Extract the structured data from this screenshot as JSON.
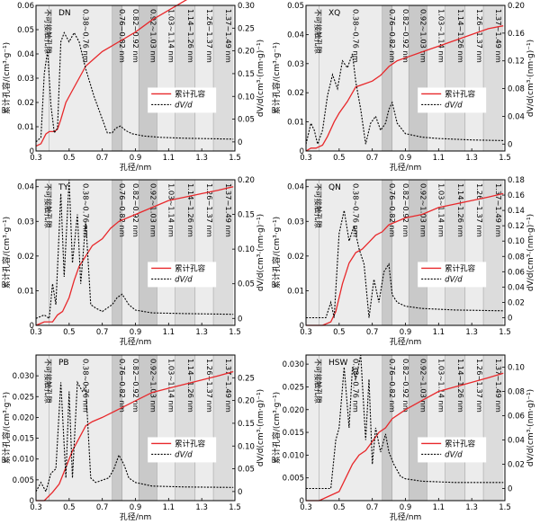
{
  "chart_data": [
    {
      "type": "line",
      "code": "DN",
      "xlabel": "孔径/nm",
      "ylabel": "累计孔容/(cm³·g⁻¹)",
      "y2label": "dV/d(cm³·(nm·g)⁻¹)",
      "xlim": [
        0.3,
        1.5
      ],
      "xticks": [
        "0.3",
        "0.5",
        "0.7",
        "0.9",
        "1.1",
        "1.3",
        "1.5"
      ],
      "ylim": [
        0,
        0.06
      ],
      "yticks": [
        "0",
        "0.01",
        "0.02",
        "0.03",
        "0.04",
        "0.05",
        "0.06"
      ],
      "y2lim": [
        -0.02,
        0.3
      ],
      "y2ticks": [
        "0",
        "0.05",
        "0.10",
        "0.15",
        "0.20",
        "0.25",
        "0.30"
      ],
      "zones": [
        "不可接触孔隙",
        "0.38~0.76 nm",
        "0.76~0.82 nm",
        "0.82~0.92 nm",
        "0.92~1.03 nm",
        "1.03~1.14 nm",
        "1.14~1.26 nm",
        "1.26~1.37 nm",
        "1.37~1.49 nm"
      ],
      "legend": [
        "累计孔容",
        "dV/d"
      ],
      "series": [
        {
          "name": "累计孔容",
          "x": [
            0.3,
            0.33,
            0.36,
            0.38,
            0.41,
            0.43,
            0.45,
            0.48,
            0.52,
            0.56,
            0.6,
            0.65,
            0.7,
            0.75,
            0.8,
            0.9,
            1.0,
            1.1,
            1.2,
            1.3,
            1.4,
            1.49
          ],
          "values": [
            0.002,
            0.003,
            0.007,
            0.008,
            0.008,
            0.009,
            0.013,
            0.02,
            0.025,
            0.03,
            0.035,
            0.038,
            0.041,
            0.043,
            0.045,
            0.049,
            0.054,
            0.058,
            0.062,
            0.066,
            0.069,
            0.072
          ]
        },
        {
          "name": "dV/d",
          "x": [
            0.3,
            0.33,
            0.35,
            0.37,
            0.39,
            0.41,
            0.43,
            0.45,
            0.47,
            0.5,
            0.53,
            0.56,
            0.6,
            0.65,
            0.7,
            0.73,
            0.76,
            0.78,
            0.81,
            0.84,
            0.88,
            0.95,
            1.05,
            1.2,
            1.35,
            1.49
          ],
          "values": [
            0.0,
            0.01,
            0.15,
            0.2,
            0.08,
            0.02,
            0.03,
            0.22,
            0.24,
            0.22,
            0.24,
            0.22,
            0.16,
            0.1,
            0.05,
            0.02,
            0.02,
            0.03,
            0.035,
            0.025,
            0.018,
            0.013,
            0.01,
            0.008,
            0.007,
            0.006
          ]
        }
      ]
    },
    {
      "type": "line",
      "code": "XQ",
      "xlabel": "孔径/nm",
      "ylabel": "累计孔容/(cm³·g⁻¹)",
      "y2label": "dV/d(cm³·(nm·g)⁻¹)",
      "xlim": [
        0.3,
        1.5
      ],
      "xticks": [
        "0.3",
        "0.5",
        "0.7",
        "0.9",
        "1.1",
        "1.3",
        "1.5"
      ],
      "ylim": [
        0,
        0.05
      ],
      "yticks": [
        "0",
        "0.01",
        "0.02",
        "0.03",
        "0.04",
        "0.05"
      ],
      "y2lim": [
        -0.01,
        0.2
      ],
      "y2ticks": [
        "0",
        "0.04",
        "0.08",
        "0.12",
        "0.16",
        "0.20"
      ],
      "zones": [
        "不可接触孔隙",
        "0.38~0.76 nm",
        "0.76~0.82 nm",
        "0.82~0.92 nm",
        "0.92~1.03 nm",
        "1.03~1.14 nm",
        "1.14~1.26 nm",
        "1.26~1.37 nm",
        "1.37~1.49 nm"
      ],
      "legend": [
        "累计孔容",
        "dV/d"
      ],
      "series": [
        {
          "name": "累计孔容",
          "x": [
            0.3,
            0.33,
            0.36,
            0.4,
            0.43,
            0.47,
            0.5,
            0.55,
            0.6,
            0.65,
            0.7,
            0.75,
            0.8,
            0.85,
            0.9,
            1.0,
            1.1,
            1.2,
            1.3,
            1.4,
            1.49
          ],
          "values": [
            0.0,
            0.001,
            0.001,
            0.002,
            0.005,
            0.01,
            0.013,
            0.017,
            0.022,
            0.023,
            0.024,
            0.026,
            0.029,
            0.031,
            0.032,
            0.034,
            0.036,
            0.038,
            0.04,
            0.042,
            0.043
          ]
        },
        {
          "name": "dV/d",
          "x": [
            0.3,
            0.33,
            0.35,
            0.37,
            0.4,
            0.43,
            0.46,
            0.49,
            0.52,
            0.55,
            0.58,
            0.6,
            0.63,
            0.66,
            0.69,
            0.72,
            0.75,
            0.78,
            0.8,
            0.82,
            0.85,
            0.9,
            1.0,
            1.1,
            1.2,
            1.3,
            1.49
          ],
          "values": [
            0.0,
            0.03,
            0.02,
            0.0,
            0.02,
            0.07,
            0.1,
            0.08,
            0.12,
            0.11,
            0.13,
            0.09,
            0.05,
            0.0,
            0.03,
            0.04,
            0.02,
            0.03,
            0.05,
            0.06,
            0.03,
            0.015,
            0.01,
            0.008,
            0.007,
            0.006,
            0.005
          ]
        }
      ]
    },
    {
      "type": "line",
      "code": "TY",
      "xlabel": "孔径/nm",
      "ylabel": "累计孔容/(cm³·g⁻¹)",
      "y2label": "dV/d(cm³·(nm·g)⁻¹)",
      "xlim": [
        0.3,
        1.5
      ],
      "xticks": [
        "0.3",
        "0.5",
        "0.7",
        "0.9",
        "1.1",
        "1.3",
        "1.5"
      ],
      "ylim": [
        0,
        0.042
      ],
      "yticks": [
        "0",
        "0.01",
        "0.02",
        "0.03",
        "0.04"
      ],
      "y2lim": [
        -0.01,
        0.2
      ],
      "y2ticks": [
        "0",
        "0.05",
        "0.10",
        "0.15",
        "0.20"
      ],
      "zones": [
        "不可接触孔隙",
        "0.38~0.76 nm",
        "0.76~0.82 nm",
        "0.82~0.92 nm",
        "0.92~1.03 nm",
        "1.03~1.14 nm",
        "1.14~1.26 nm",
        "1.26~1.37 nm",
        "1.37~1.49 nm"
      ],
      "legend": [
        "累计孔容",
        "dV/d"
      ],
      "series": [
        {
          "name": "累计孔容",
          "x": [
            0.3,
            0.35,
            0.4,
            0.43,
            0.46,
            0.5,
            0.53,
            0.56,
            0.6,
            0.64,
            0.7,
            0.75,
            0.8,
            0.9,
            1.0,
            1.1,
            1.2,
            1.3,
            1.4,
            1.49
          ],
          "values": [
            0.0,
            0.001,
            0.001,
            0.003,
            0.004,
            0.008,
            0.013,
            0.017,
            0.02,
            0.023,
            0.025,
            0.028,
            0.03,
            0.032,
            0.034,
            0.036,
            0.037,
            0.038,
            0.039,
            0.04
          ]
        },
        {
          "name": "dV/d",
          "x": [
            0.3,
            0.35,
            0.38,
            0.4,
            0.42,
            0.45,
            0.47,
            0.5,
            0.52,
            0.55,
            0.57,
            0.6,
            0.63,
            0.66,
            0.7,
            0.73,
            0.76,
            0.79,
            0.82,
            0.86,
            0.9,
            1.0,
            1.2,
            1.49
          ],
          "values": [
            0.0,
            0.005,
            0.0,
            0.05,
            0.02,
            0.18,
            0.06,
            0.2,
            0.08,
            0.15,
            0.05,
            0.14,
            0.02,
            0.015,
            0.01,
            0.015,
            0.02,
            0.03,
            0.035,
            0.02,
            0.012,
            0.008,
            0.007,
            0.006
          ]
        }
      ]
    },
    {
      "type": "line",
      "code": "QN",
      "xlabel": "孔径/nm",
      "ylabel": "累计孔容/(cm³·g⁻¹)",
      "y2label": "dV/d(cm³·(nm·g)⁻¹)",
      "xlim": [
        0.3,
        1.5
      ],
      "xticks": [
        "0.3",
        "0.5",
        "0.7",
        "0.9",
        "1.1",
        "1.3",
        "1.5"
      ],
      "ylim": [
        0,
        0.042
      ],
      "yticks": [
        "0",
        "0.01",
        "0.02",
        "0.03",
        "0.04"
      ],
      "y2lim": [
        -0.01,
        0.18
      ],
      "y2ticks": [
        "0",
        "0.02",
        "0.04",
        "0.06",
        "0.08",
        "0.10",
        "0.12",
        "0.14",
        "0.16",
        "0.18"
      ],
      "zones": [
        "不可接触孔隙",
        "0.38~0.76 nm",
        "0.76~0.82 nm",
        "0.82~0.92 nm",
        "0.92~1.03 nm",
        "1.03~1.14 nm",
        "1.14~1.26 nm",
        "1.26~1.37 nm",
        "1.37~1.49 nm"
      ],
      "legend": [
        "累计孔容",
        "dV/d"
      ],
      "series": [
        {
          "name": "累计孔容",
          "x": [
            0.3,
            0.35,
            0.4,
            0.45,
            0.48,
            0.52,
            0.56,
            0.6,
            0.64,
            0.68,
            0.72,
            0.76,
            0.8,
            0.9,
            1.0,
            1.1,
            1.2,
            1.3,
            1.4,
            1.49
          ],
          "values": [
            0.0,
            0.0,
            0.0,
            0.001,
            0.004,
            0.012,
            0.018,
            0.021,
            0.022,
            0.024,
            0.026,
            0.027,
            0.029,
            0.031,
            0.032,
            0.034,
            0.035,
            0.036,
            0.037,
            0.038
          ]
        },
        {
          "name": "dV/d",
          "x": [
            0.3,
            0.38,
            0.42,
            0.45,
            0.47,
            0.5,
            0.53,
            0.56,
            0.59,
            0.62,
            0.65,
            0.68,
            0.71,
            0.74,
            0.77,
            0.8,
            0.82,
            0.85,
            0.9,
            1.0,
            1.2,
            1.49
          ],
          "values": [
            0.0,
            0.0,
            0.0,
            0.02,
            0.0,
            0.11,
            0.14,
            0.1,
            0.12,
            0.09,
            0.07,
            0.0,
            0.05,
            0.02,
            0.06,
            0.07,
            0.03,
            0.02,
            0.015,
            0.012,
            0.01,
            0.009
          ]
        }
      ]
    },
    {
      "type": "line",
      "code": "PB",
      "xlabel": "孔径/nm",
      "ylabel": "累计孔容/(cm³·g⁻¹)",
      "y2label": "dV/d(cm³·(nm·g)⁻¹)",
      "xlim": [
        0.3,
        1.5
      ],
      "xticks": [
        "0.3",
        "0.5",
        "0.7",
        "0.9",
        "1.1",
        "1.3",
        "1.5"
      ],
      "ylim": [
        0,
        0.035
      ],
      "yticks": [
        "0",
        "0.005",
        "0.010",
        "0.015",
        "0.020",
        "0.025",
        "0.030"
      ],
      "y2lim": [
        -0.02,
        0.3
      ],
      "y2ticks": [
        "0",
        "0.05",
        "0.10",
        "0.15",
        "0.20",
        "0.25"
      ],
      "zones": [
        "不可接触孔隙",
        "0.38~0.76 nm",
        "0.76~0.82 nm",
        "0.82~0.92 nm",
        "0.92~1.03 nm",
        "1.03~1.14 nm",
        "1.14~1.26 nm",
        "1.26~1.37 nm",
        "1.37~1.49 nm"
      ],
      "legend": [
        "累计孔容",
        "dV/d"
      ],
      "series": [
        {
          "name": "累计孔容",
          "x": [
            0.3,
            0.35,
            0.4,
            0.44,
            0.48,
            0.52,
            0.56,
            0.6,
            0.64,
            0.7,
            0.75,
            0.8,
            0.9,
            1.0,
            1.1,
            1.2,
            1.3,
            1.4,
            1.49
          ],
          "values": [
            0.0,
            0.0,
            0.002,
            0.004,
            0.008,
            0.012,
            0.015,
            0.018,
            0.019,
            0.02,
            0.021,
            0.022,
            0.024,
            0.026,
            0.027,
            0.028,
            0.029,
            0.03,
            0.031
          ]
        },
        {
          "name": "dV/d",
          "x": [
            0.3,
            0.33,
            0.36,
            0.39,
            0.42,
            0.45,
            0.48,
            0.5,
            0.52,
            0.55,
            0.58,
            0.6,
            0.63,
            0.66,
            0.7,
            0.74,
            0.77,
            0.8,
            0.83,
            0.86,
            0.9,
            1.0,
            1.2,
            1.49
          ],
          "values": [
            0.0,
            0.02,
            0.0,
            0.04,
            0.05,
            0.24,
            0.03,
            0.22,
            0.03,
            0.24,
            0.22,
            0.23,
            0.03,
            0.02,
            0.025,
            0.03,
            0.05,
            0.08,
            0.06,
            0.03,
            0.02,
            0.012,
            0.01,
            0.009
          ]
        }
      ]
    },
    {
      "type": "line",
      "code": "HSW",
      "xlabel": "孔径/nm",
      "ylabel": "累计孔容/(cm³·g⁻¹)",
      "y2label": "dV/d(cm³·(nm·g)⁻¹)",
      "xlim": [
        0.3,
        1.5
      ],
      "xticks": [
        "0.3",
        "0.5",
        "0.7",
        "0.9",
        "1.1",
        "1.3",
        "1.5"
      ],
      "ylim": [
        0,
        0.032
      ],
      "yticks": [
        "0",
        "0.005",
        "0.010",
        "0.015",
        "0.020",
        "0.025",
        "0.030"
      ],
      "y2lim": [
        -0.01,
        0.11
      ],
      "y2ticks": [
        "0",
        "0.02",
        "0.04",
        "0.06",
        "0.08",
        "0.10"
      ],
      "zones": [
        "不可接触孔隙",
        "0.38~0.76 nm",
        "0.76~0.82 nm",
        "0.82~0.92 nm",
        "0.92~1.03 nm",
        "1.03~1.14 nm",
        "1.14~1.26 nm",
        "1.26~1.37 nm",
        "1.37~1.49 nm"
      ],
      "legend": [
        "累计孔容",
        "dV/d"
      ],
      "series": [
        {
          "name": "累计孔容",
          "x": [
            0.3,
            0.38,
            0.44,
            0.5,
            0.54,
            0.58,
            0.62,
            0.66,
            0.7,
            0.74,
            0.78,
            0.82,
            0.9,
            1.0,
            1.1,
            1.2,
            1.3,
            1.4,
            1.49
          ],
          "values": [
            0.0,
            0.0,
            0.001,
            0.002,
            0.005,
            0.008,
            0.01,
            0.011,
            0.013,
            0.015,
            0.016,
            0.018,
            0.02,
            0.022,
            0.024,
            0.025,
            0.026,
            0.027,
            0.028
          ]
        },
        {
          "name": "dV/d",
          "x": [
            0.3,
            0.4,
            0.45,
            0.48,
            0.5,
            0.53,
            0.56,
            0.58,
            0.6,
            0.63,
            0.66,
            0.68,
            0.7,
            0.72,
            0.75,
            0.78,
            0.8,
            0.83,
            0.87,
            0.9,
            1.0,
            1.2,
            1.49
          ],
          "values": [
            0.0,
            0.0,
            0.0,
            0.04,
            0.05,
            0.1,
            0.05,
            0.1,
            0.09,
            0.11,
            0.04,
            0.09,
            0.02,
            0.05,
            0.03,
            0.045,
            0.03,
            0.02,
            0.01,
            0.008,
            0.006,
            0.005,
            0.005
          ]
        }
      ]
    }
  ],
  "colors": {
    "cumulative": "#e8282b",
    "derivative": "#000000",
    "zone_light": "#ececec",
    "zone_mid": "#dcdcdc",
    "zone_dark": "#c9c9c9",
    "frame": "#000000"
  }
}
